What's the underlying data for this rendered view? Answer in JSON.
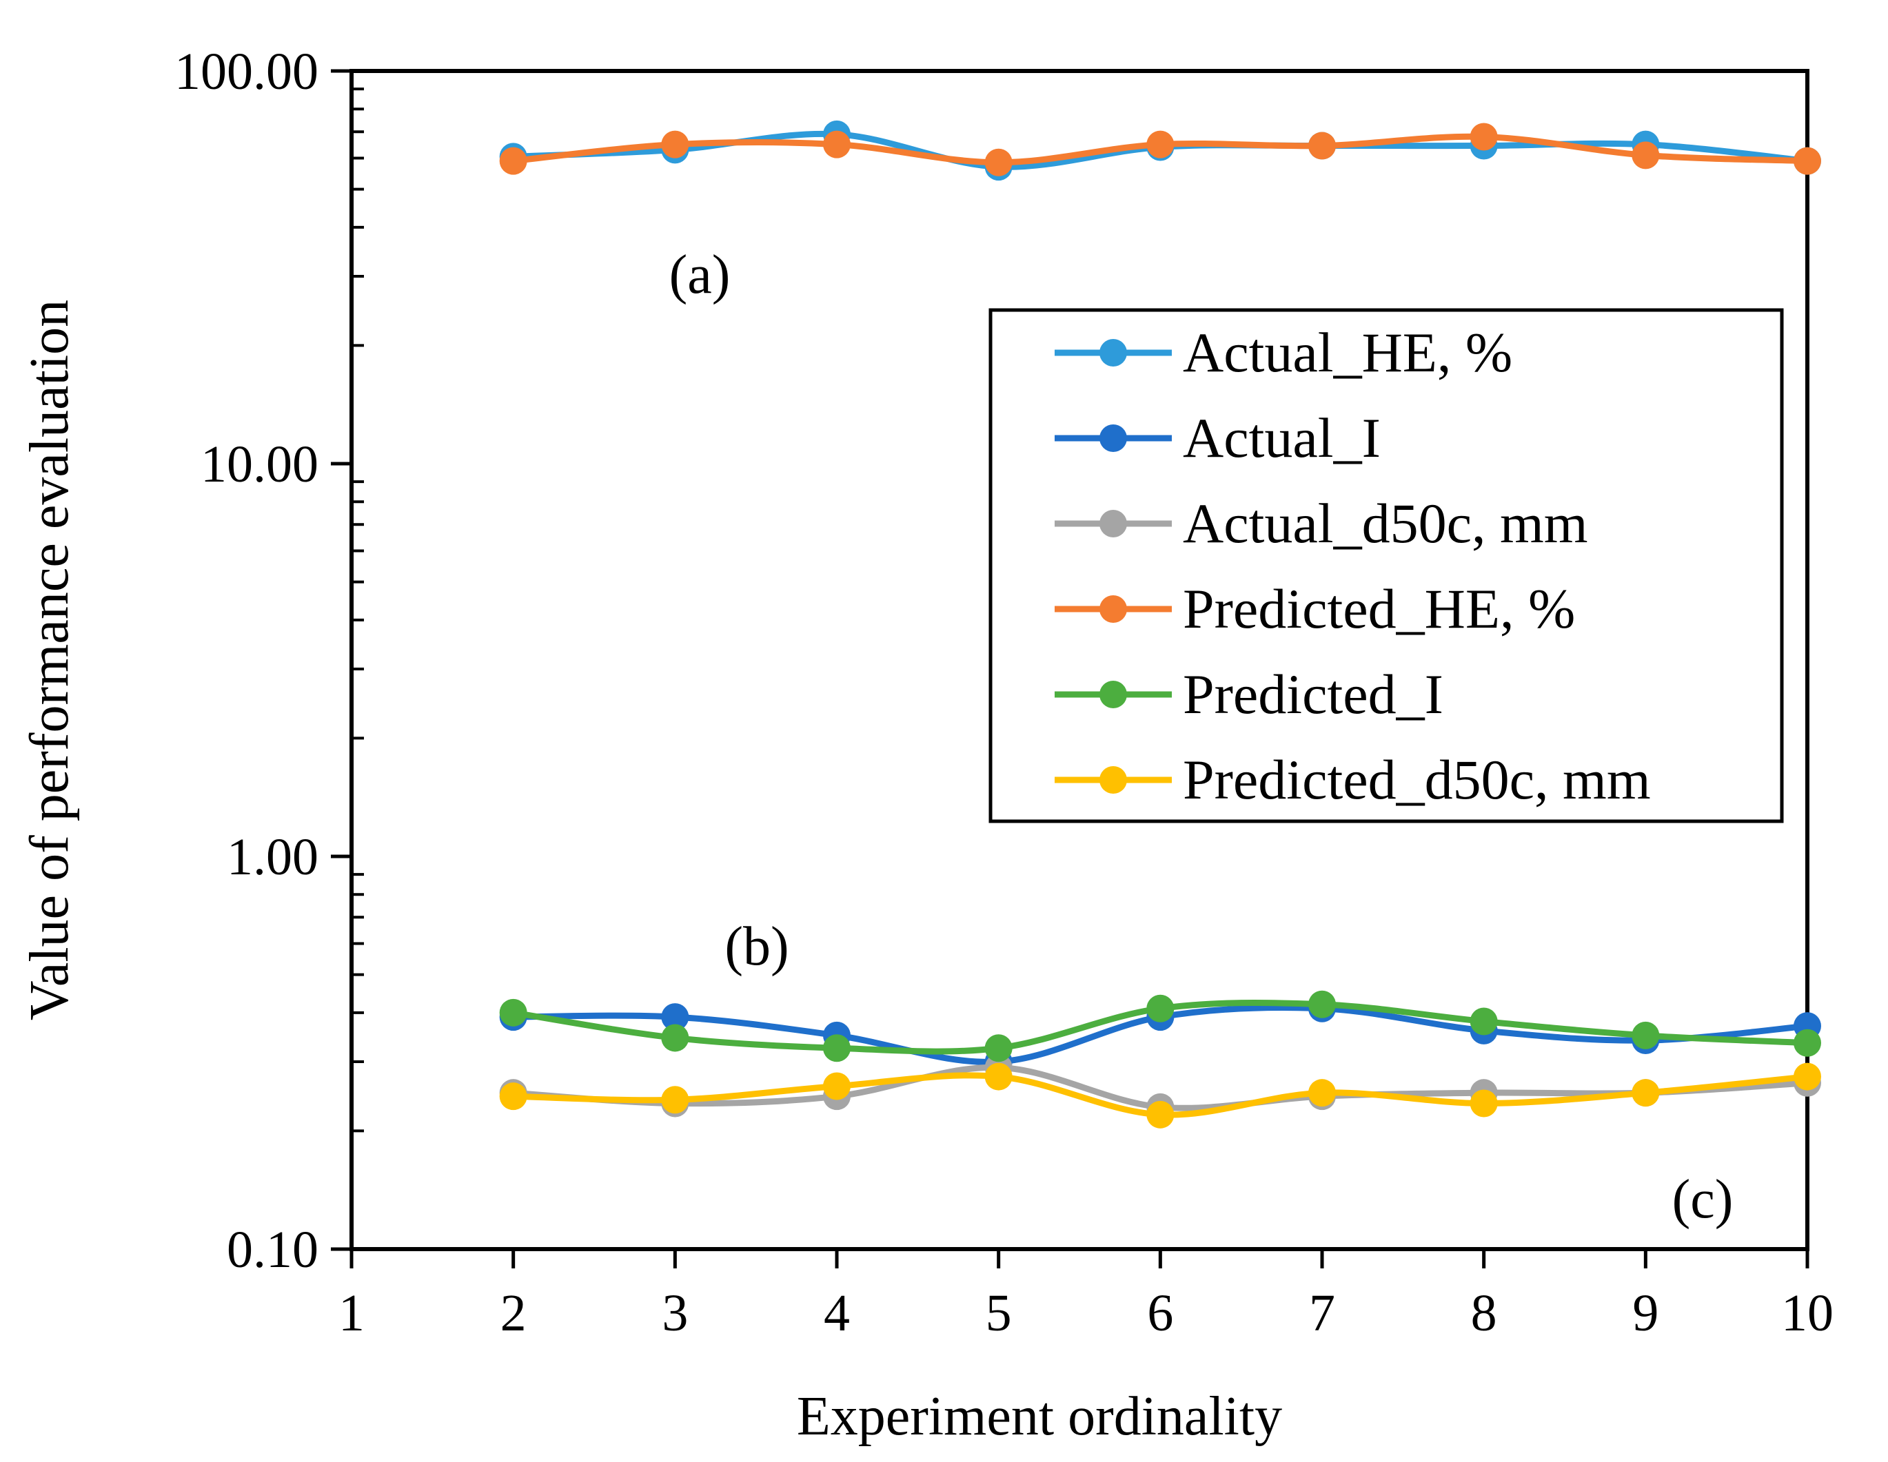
{
  "chart_data": {
    "type": "line",
    "title": "",
    "xlabel": "Experiment ordinality",
    "ylabel": "Value of performance evaluation",
    "yscale": "log",
    "xlim": [
      1,
      10
    ],
    "ylim": [
      0.1,
      100
    ],
    "x_ticks": [
      1,
      2,
      3,
      4,
      5,
      6,
      7,
      8,
      9,
      10
    ],
    "y_ticks": [
      0.1,
      1,
      10,
      100
    ],
    "y_tick_labels": [
      "0.10",
      "1.00",
      "10.00",
      "100.00"
    ],
    "x": [
      2,
      3,
      4,
      5,
      6,
      7,
      8,
      9,
      10
    ],
    "legend_position": "right",
    "series": [
      {
        "name": "Actual_HE, %",
        "color": "#2E9BDA",
        "values": [
          60.5,
          63.0,
          69.0,
          57.0,
          64.0,
          64.5,
          64.5,
          65.0,
          59.0
        ]
      },
      {
        "name": "Actual_I",
        "color": "#1F6FCB",
        "values": [
          0.39,
          0.39,
          0.35,
          0.3,
          0.39,
          0.41,
          0.36,
          0.34,
          0.37
        ]
      },
      {
        "name": "Actual_d50c, mm",
        "color": "#A5A5A5",
        "values": [
          0.25,
          0.235,
          0.245,
          0.29,
          0.23,
          0.245,
          0.25,
          0.25,
          0.265
        ]
      },
      {
        "name": "Predicted_HE, %",
        "color": "#F47C30",
        "values": [
          59.0,
          65.0,
          65.0,
          58.5,
          65.0,
          64.5,
          68.0,
          61.0,
          59.0
        ]
      },
      {
        "name": "Predicted_I",
        "color": "#4CAE3F",
        "values": [
          0.4,
          0.345,
          0.325,
          0.325,
          0.41,
          0.42,
          0.38,
          0.35,
          0.335
        ]
      },
      {
        "name": "Predicted_d50c, mm",
        "color": "#FFC000",
        "values": [
          0.245,
          0.24,
          0.26,
          0.275,
          0.22,
          0.25,
          0.235,
          0.25,
          0.275
        ]
      }
    ],
    "annotations": [
      "(a)",
      "(b)",
      "(c)"
    ]
  }
}
